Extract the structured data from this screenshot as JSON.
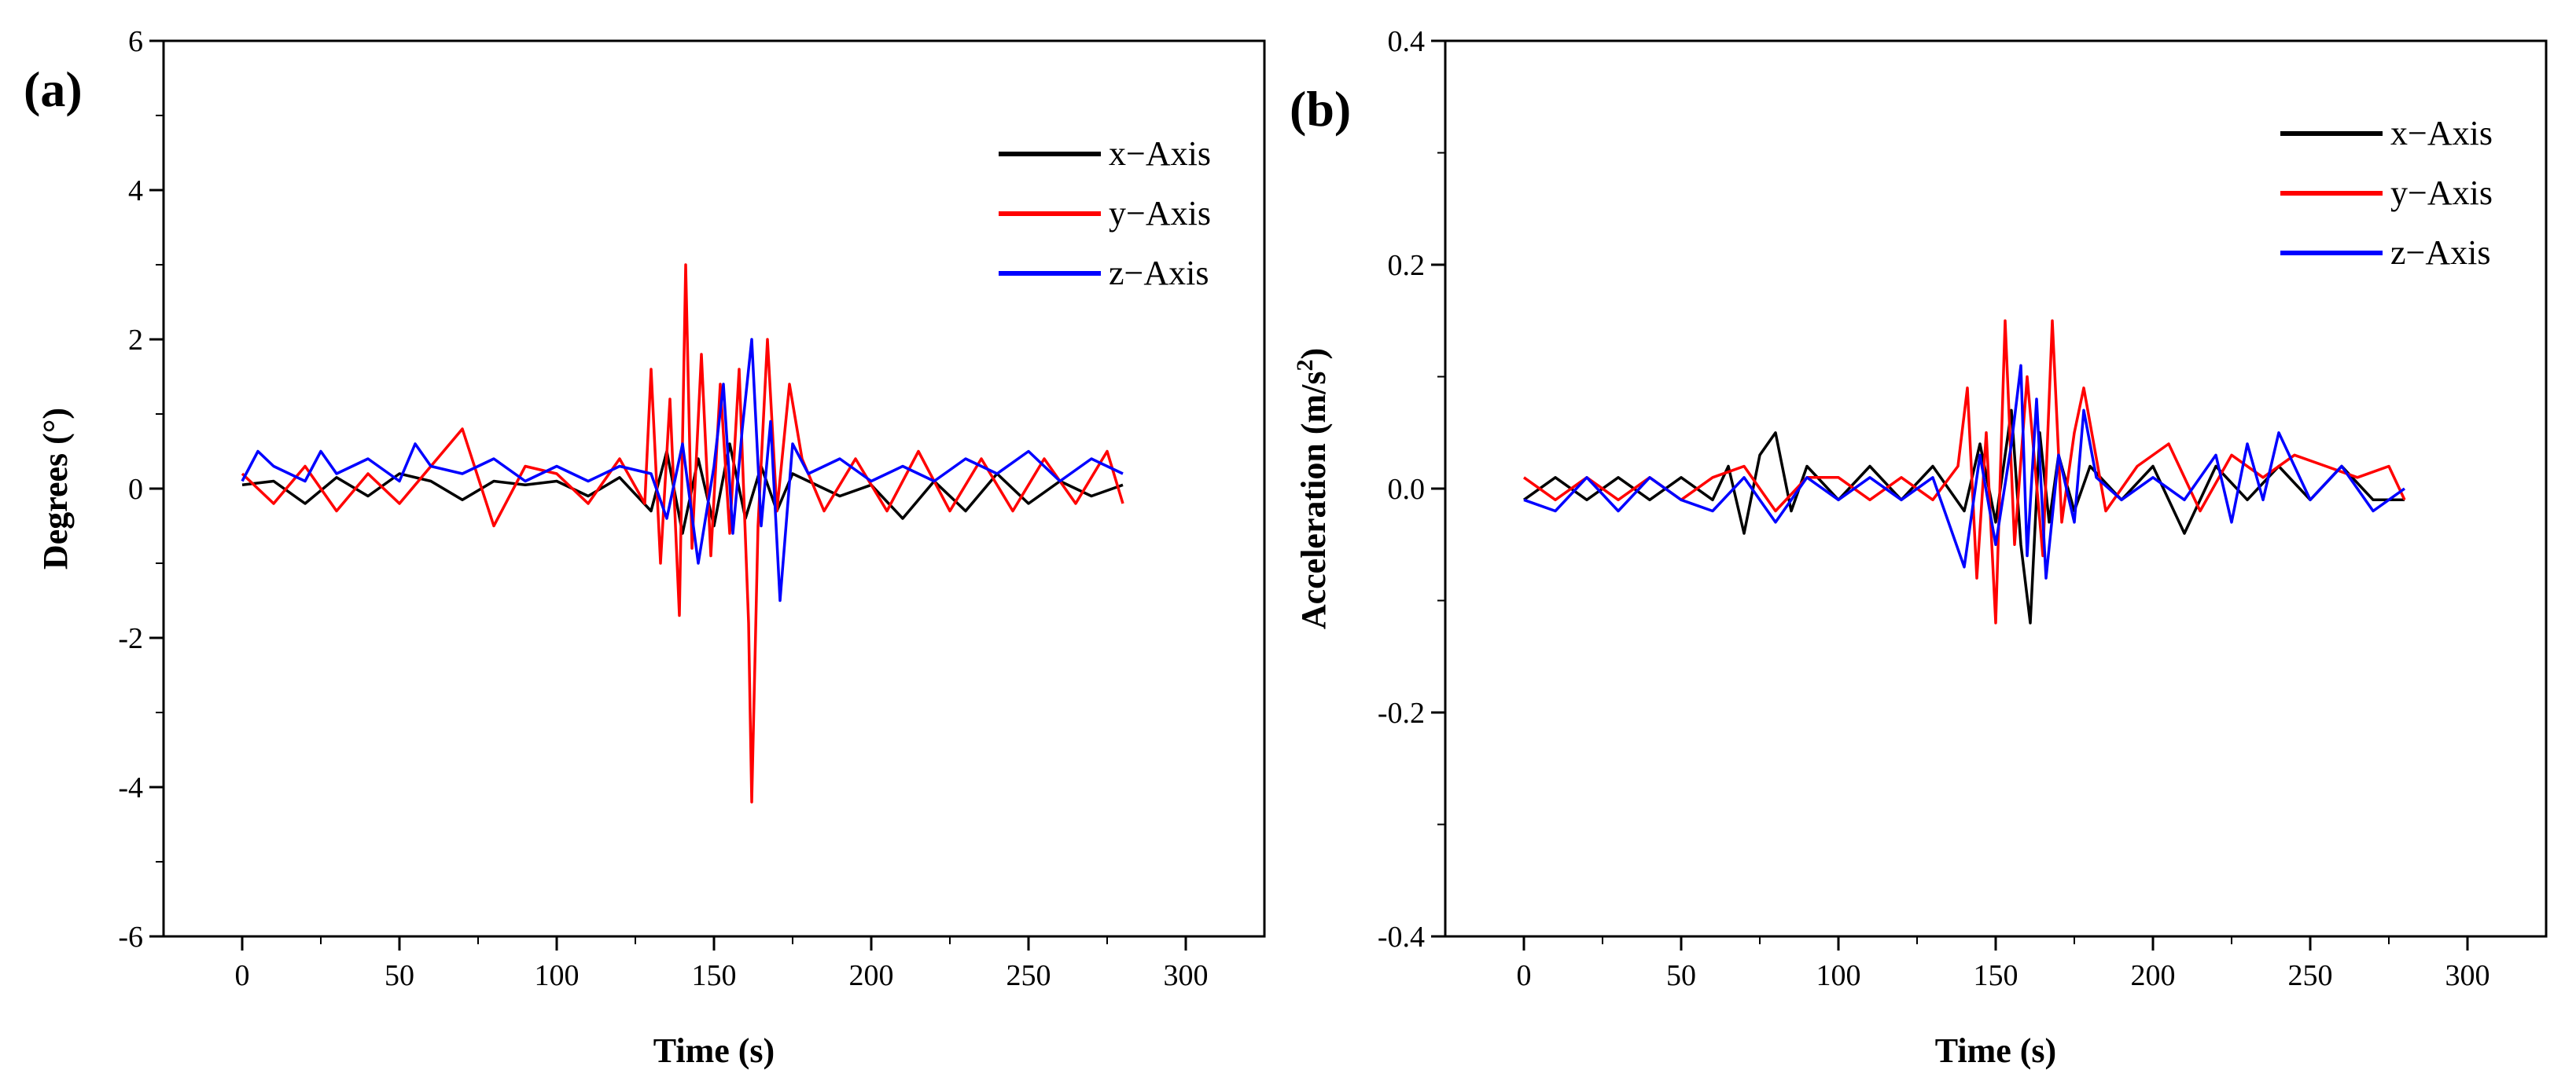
{
  "chart_data": [
    {
      "type": "line",
      "panel_label": "(a)",
      "xlabel": "Time (s)",
      "ylabel": "Degrees (°)",
      "xlim": [
        -25,
        325
      ],
      "ylim": [
        -6,
        6
      ],
      "x_ticks": [
        0,
        50,
        100,
        150,
        200,
        250,
        300
      ],
      "x_tick_labels": [
        "0",
        "50",
        "100",
        "150",
        "200",
        "250",
        "300"
      ],
      "y_ticks": [
        -6,
        -4,
        -2,
        0,
        2,
        4,
        6
      ],
      "y_tick_labels": [
        "-6",
        "-4",
        "-2",
        "0",
        "2",
        "4",
        "6"
      ],
      "legend_position": "top-right",
      "series": [
        {
          "name": "x−Axis",
          "color": "#000000",
          "x": [
            0,
            10,
            20,
            30,
            40,
            50,
            60,
            70,
            80,
            90,
            100,
            110,
            120,
            130,
            135,
            140,
            145,
            150,
            155,
            160,
            165,
            170,
            175,
            180,
            190,
            200,
            210,
            220,
            230,
            240,
            250,
            260,
            270,
            280
          ],
          "y": [
            0.05,
            0.1,
            -0.2,
            0.15,
            -0.1,
            0.2,
            0.1,
            -0.15,
            0.1,
            0.05,
            0.1,
            -0.1,
            0.15,
            -0.3,
            0.5,
            -0.6,
            0.4,
            -0.5,
            0.6,
            -0.4,
            0.3,
            -0.3,
            0.2,
            0.1,
            -0.1,
            0.05,
            -0.4,
            0.1,
            -0.3,
            0.2,
            -0.2,
            0.1,
            -0.1,
            0.05
          ]
        },
        {
          "name": "y−Axis",
          "color": "#ff0000",
          "x": [
            0,
            10,
            20,
            30,
            40,
            50,
            60,
            70,
            80,
            90,
            100,
            110,
            120,
            128,
            130,
            133,
            136,
            139,
            141,
            143,
            146,
            149,
            152,
            155,
            158,
            161,
            162,
            164,
            167,
            170,
            174,
            178,
            185,
            195,
            205,
            215,
            225,
            235,
            245,
            255,
            265,
            275,
            280
          ],
          "y": [
            0.2,
            -0.2,
            0.3,
            -0.3,
            0.2,
            -0.2,
            0.3,
            0.8,
            -0.5,
            0.3,
            0.2,
            -0.2,
            0.4,
            -0.2,
            1.6,
            -1.0,
            1.2,
            -1.7,
            3.0,
            -0.8,
            1.8,
            -0.9,
            1.4,
            -0.6,
            1.6,
            -1.8,
            -4.2,
            -0.5,
            2.0,
            -0.3,
            1.4,
            0.4,
            -0.3,
            0.4,
            -0.3,
            0.5,
            -0.3,
            0.4,
            -0.3,
            0.4,
            -0.2,
            0.5,
            -0.2
          ]
        },
        {
          "name": "z−Axis",
          "color": "#0000ff",
          "x": [
            0,
            5,
            10,
            20,
            25,
            30,
            40,
            50,
            55,
            60,
            70,
            80,
            90,
            100,
            110,
            120,
            130,
            135,
            140,
            145,
            150,
            153,
            156,
            159,
            162,
            165,
            168,
            171,
            175,
            180,
            190,
            200,
            210,
            220,
            230,
            240,
            250,
            260,
            270,
            280
          ],
          "y": [
            0.1,
            0.5,
            0.3,
            0.1,
            0.5,
            0.2,
            0.4,
            0.1,
            0.6,
            0.3,
            0.2,
            0.4,
            0.1,
            0.3,
            0.1,
            0.3,
            0.2,
            -0.4,
            0.6,
            -1.0,
            0.3,
            1.4,
            -0.6,
            0.8,
            2.0,
            -0.5,
            0.9,
            -1.5,
            0.6,
            0.2,
            0.4,
            0.1,
            0.3,
            0.1,
            0.4,
            0.2,
            0.5,
            0.1,
            0.4,
            0.2
          ]
        }
      ]
    },
    {
      "type": "line",
      "panel_label": "(b)",
      "xlabel": "Time (s)",
      "ylabel": "Acceleration (m/s",
      "ylabel_superscript": "2",
      "ylabel_suffix": ")",
      "xlim": [
        -25,
        325
      ],
      "ylim": [
        -0.4,
        0.4
      ],
      "x_ticks": [
        0,
        50,
        100,
        150,
        200,
        250,
        300
      ],
      "x_tick_labels": [
        "0",
        "50",
        "100",
        "150",
        "200",
        "250",
        "300"
      ],
      "y_ticks": [
        -0.4,
        -0.2,
        0.0,
        0.2,
        0.4
      ],
      "y_tick_labels": [
        "-0.4",
        "-0.2",
        "0.0",
        "0.2",
        "0.4"
      ],
      "legend_position": "top-right",
      "series": [
        {
          "name": "x−Axis",
          "color": "#000000",
          "x": [
            0,
            10,
            20,
            30,
            40,
            50,
            60,
            65,
            70,
            75,
            80,
            85,
            90,
            100,
            110,
            120,
            130,
            140,
            145,
            150,
            155,
            158,
            161,
            164,
            167,
            170,
            175,
            180,
            190,
            200,
            210,
            220,
            230,
            240,
            250,
            260,
            270,
            280
          ],
          "y": [
            -0.01,
            0.01,
            -0.01,
            0.01,
            -0.01,
            0.01,
            -0.01,
            0.02,
            -0.04,
            0.03,
            0.05,
            -0.02,
            0.02,
            -0.01,
            0.02,
            -0.01,
            0.02,
            -0.02,
            0.04,
            -0.03,
            0.07,
            -0.05,
            -0.12,
            0.05,
            -0.03,
            0.03,
            -0.02,
            0.02,
            -0.01,
            0.02,
            -0.04,
            0.02,
            -0.01,
            0.02,
            -0.01,
            0.02,
            -0.01,
            -0.01
          ]
        },
        {
          "name": "y−Axis",
          "color": "#ff0000",
          "x": [
            0,
            10,
            20,
            30,
            40,
            50,
            60,
            70,
            80,
            90,
            100,
            110,
            120,
            130,
            138,
            141,
            144,
            147,
            150,
            153,
            156,
            160,
            165,
            168,
            171,
            175,
            178,
            185,
            195,
            205,
            215,
            225,
            235,
            245,
            255,
            265,
            275,
            280
          ],
          "y": [
            0.01,
            -0.01,
            0.01,
            -0.01,
            0.01,
            -0.01,
            0.01,
            0.02,
            -0.02,
            0.01,
            0.01,
            -0.01,
            0.01,
            -0.01,
            0.02,
            0.09,
            -0.08,
            0.05,
            -0.12,
            0.15,
            -0.05,
            0.1,
            -0.06,
            0.15,
            -0.03,
            0.05,
            0.09,
            -0.02,
            0.02,
            0.04,
            -0.02,
            0.03,
            0.01,
            0.03,
            0.02,
            0.01,
            0.02,
            -0.01
          ]
        },
        {
          "name": "z−Axis",
          "color": "#0000ff",
          "x": [
            0,
            10,
            20,
            30,
            40,
            50,
            60,
            70,
            80,
            90,
            100,
            110,
            120,
            130,
            140,
            145,
            150,
            155,
            158,
            160,
            163,
            166,
            170,
            175,
            178,
            182,
            190,
            200,
            210,
            220,
            225,
            230,
            235,
            240,
            250,
            260,
            270,
            280
          ],
          "y": [
            -0.01,
            -0.02,
            0.01,
            -0.02,
            0.01,
            -0.01,
            -0.02,
            0.01,
            -0.03,
            0.01,
            -0.01,
            0.01,
            -0.01,
            0.01,
            -0.07,
            0.03,
            -0.05,
            0.04,
            0.11,
            -0.06,
            0.08,
            -0.08,
            0.03,
            -0.03,
            0.07,
            0.01,
            -0.01,
            0.01,
            -0.01,
            0.03,
            -0.03,
            0.04,
            -0.01,
            0.05,
            -0.01,
            0.02,
            -0.02,
            0.0
          ]
        }
      ]
    }
  ]
}
